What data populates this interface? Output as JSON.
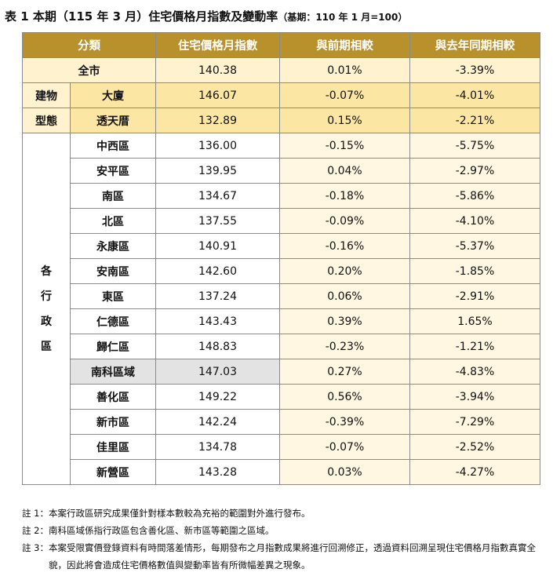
{
  "title": {
    "main": "表 1 本期（115 年 3 月）住宅價格月指數及變動率",
    "base": "（基期：110 年 1 月=100）"
  },
  "headers": {
    "category": "分類",
    "index": "住宅價格月指數",
    "mom": "與前期相較",
    "yoy": "與去年同期相較"
  },
  "groups": {
    "building_line1": "建物",
    "building_line2": "型態",
    "district_chars": [
      "各",
      "行",
      "政",
      "區"
    ]
  },
  "rows": {
    "all": {
      "name": "全市",
      "index": "140.38",
      "mom": "0.01%",
      "yoy": "-3.39%"
    },
    "building": [
      {
        "name": "大廈",
        "index": "146.07",
        "mom": "-0.07%",
        "yoy": "-4.01%"
      },
      {
        "name": "透天厝",
        "index": "132.89",
        "mom": "0.15%",
        "yoy": "-2.21%"
      }
    ],
    "districts": [
      {
        "name": "中西區",
        "index": "136.00",
        "mom": "-0.15%",
        "yoy": "-5.75%"
      },
      {
        "name": "安平區",
        "index": "139.95",
        "mom": "0.04%",
        "yoy": "-2.97%"
      },
      {
        "name": "南區",
        "index": "134.67",
        "mom": "-0.18%",
        "yoy": "-5.86%"
      },
      {
        "name": "北區",
        "index": "137.55",
        "mom": "-0.09%",
        "yoy": "-4.10%"
      },
      {
        "name": "永康區",
        "index": "140.91",
        "mom": "-0.16%",
        "yoy": "-5.37%"
      },
      {
        "name": "安南區",
        "index": "142.60",
        "mom": "0.20%",
        "yoy": "-1.85%"
      },
      {
        "name": "東區",
        "index": "137.24",
        "mom": "0.06%",
        "yoy": "-2.91%"
      },
      {
        "name": "仁德區",
        "index": "143.43",
        "mom": "0.39%",
        "yoy": "1.65%"
      },
      {
        "name": "歸仁區",
        "index": "148.83",
        "mom": "-0.23%",
        "yoy": "-1.21%"
      },
      {
        "name": "南科區域",
        "index": "147.03",
        "mom": "0.27%",
        "yoy": "-4.83%"
      },
      {
        "name": "善化區",
        "index": "149.22",
        "mom": "0.56%",
        "yoy": "-3.94%"
      },
      {
        "name": "新市區",
        "index": "142.24",
        "mom": "-0.39%",
        "yoy": "-7.29%"
      },
      {
        "name": "佳里區",
        "index": "134.78",
        "mom": "-0.07%",
        "yoy": "-2.52%"
      },
      {
        "name": "新營區",
        "index": "143.28",
        "mom": "0.03%",
        "yoy": "-4.27%"
      }
    ]
  },
  "notes": [
    {
      "key": "註 1：",
      "text": "本案行政區研究成果僅針對樣本數較為充裕的範圍對外進行發布。"
    },
    {
      "key": "註 2：",
      "text": "南科區域係指行政區包含善化區、新市區等範圍之區域。"
    },
    {
      "key": "註 3：",
      "text": "本案受限實價登錄資料有時間落差情形，每期發布之月指數成果將進行回溯修正，透過資料回溯呈現住宅價格月指數真實全貌，因此將會造成住宅價格數值與變動率皆有所微幅差異之現象。"
    }
  ],
  "colors": {
    "header": "#b8912c",
    "all_row": "#fef2cf",
    "building_rows": "#fce6a3",
    "value_cols": "#fff7e1",
    "highlight_row": "#e3e3e3"
  }
}
